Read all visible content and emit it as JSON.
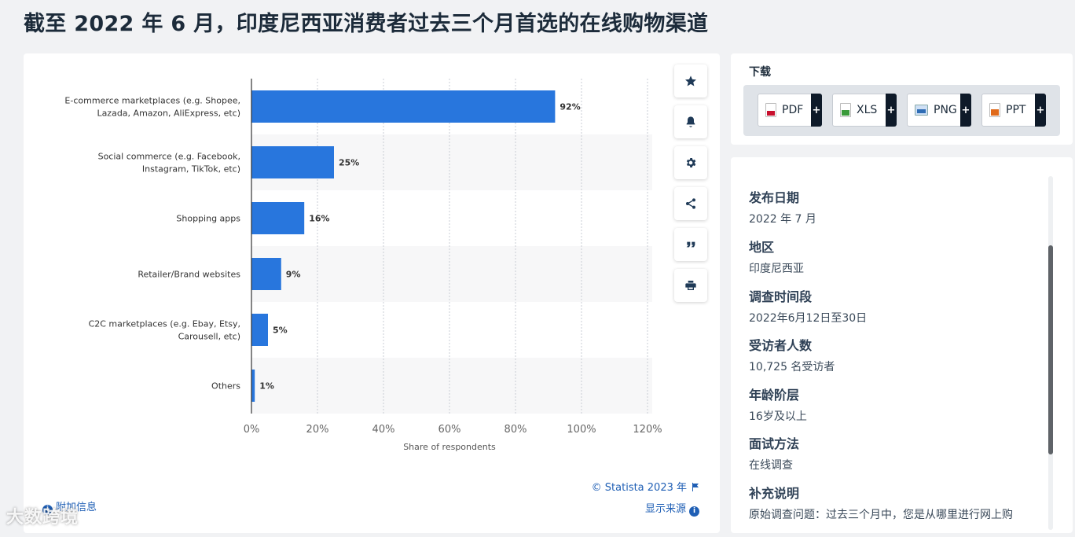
{
  "page": {
    "title": "截至 2022 年 6 月，印度尼西亚消费者过去三个月首选的在线购物渠道",
    "copyright": "© Statista 2023 年",
    "source_link": "显示来源",
    "addinfo_link": "附加信息",
    "watermark": "大数跨境"
  },
  "toolbar": {
    "items": [
      {
        "name": "favorite-button",
        "icon": "star-icon"
      },
      {
        "name": "notify-button",
        "icon": "bell-icon"
      },
      {
        "name": "settings-button",
        "icon": "gear-icon"
      },
      {
        "name": "share-button",
        "icon": "share-icon"
      },
      {
        "name": "cite-button",
        "icon": "quote-icon"
      },
      {
        "name": "print-button",
        "icon": "print-icon"
      }
    ]
  },
  "download": {
    "title": "下载",
    "buttons": [
      {
        "label": "PDF",
        "color": "#c8102e",
        "plus": "+"
      },
      {
        "label": "XLS",
        "color": "#3a9a3a",
        "plus": "+"
      },
      {
        "label": "PNG",
        "color": "#2f6db5",
        "plus": "+"
      },
      {
        "label": "PPT",
        "color": "#e06a1b",
        "plus": "+"
      }
    ]
  },
  "info": [
    {
      "label": "发布日期",
      "value": "2022 年 7 月"
    },
    {
      "label": "地区",
      "value": "印度尼西亚"
    },
    {
      "label": "调查时间段",
      "value": "2022年6月12日至30日"
    },
    {
      "label": "受访者人数",
      "value": "10,725 名受访者"
    },
    {
      "label": "年龄阶层",
      "value": "16岁及以上"
    },
    {
      "label": "面试方法",
      "value": "在线调查"
    },
    {
      "label": "补充说明",
      "value": "原始调查问题：过去三个月中，您是从哪里进行网上购"
    }
  ],
  "colors": {
    "bar": "#2876dd",
    "stripe": "#f7f7f8",
    "link": "#1f5fb5"
  },
  "chart_data": {
    "type": "bar",
    "orientation": "horizontal",
    "categories": [
      [
        "E-commerce marketplaces (e.g. Shopee,",
        "Lazada, Amazon, AliExpress, etc)"
      ],
      [
        "Social commerce (e.g. Facebook,",
        "Instagram, TikTok, etc)"
      ],
      [
        "Shopping apps"
      ],
      [
        "Retailer/Brand websites"
      ],
      [
        "C2C marketplaces (e.g. Ebay, Etsy,",
        "Carousell, etc)"
      ],
      [
        "Others"
      ]
    ],
    "values": [
      92,
      25,
      16,
      9,
      5,
      1
    ],
    "value_labels": [
      "92%",
      "25%",
      "16%",
      "9%",
      "5%",
      "1%"
    ],
    "xlabel": "Share of respondents",
    "xlim": [
      0,
      120
    ],
    "xticks": [
      "0%",
      "20%",
      "40%",
      "60%",
      "80%",
      "100%",
      "120%"
    ],
    "grid": true
  }
}
